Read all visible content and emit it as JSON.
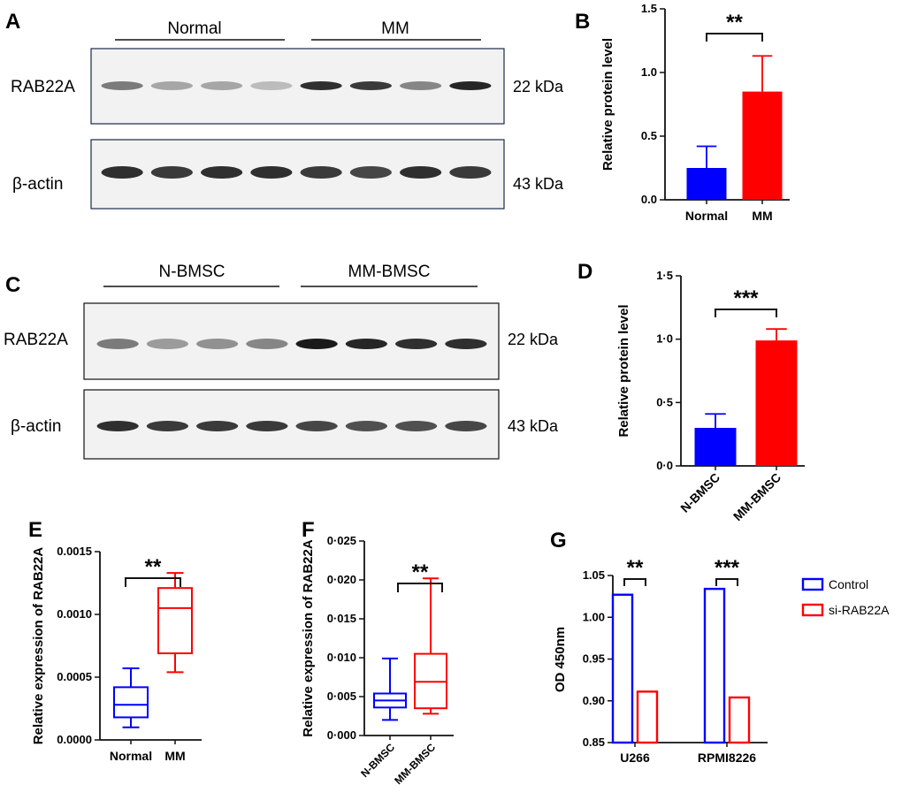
{
  "panels": {
    "A": {
      "label": "A",
      "groups": [
        "Normal",
        "MM"
      ],
      "rows": [
        "RAB22A",
        "β-actin"
      ],
      "sizes": [
        "22 kDa",
        "43 kDa"
      ],
      "band_intensity": {
        "RAB22A": [
          0.55,
          0.35,
          0.35,
          0.25,
          0.9,
          0.85,
          0.5,
          0.95
        ],
        "beta_actin": [
          0.9,
          0.85,
          0.9,
          0.9,
          0.85,
          0.8,
          0.9,
          0.85
        ]
      }
    },
    "C": {
      "label": "C",
      "groups": [
        "N-BMSC",
        "MM-BMSC"
      ],
      "rows": [
        "RAB22A",
        "β-actin"
      ],
      "sizes": [
        "22 kDa",
        "43 kDa"
      ],
      "band_intensity": {
        "RAB22A": [
          0.55,
          0.4,
          0.45,
          0.5,
          1.0,
          0.95,
          0.9,
          0.9
        ],
        "beta_actin": [
          0.9,
          0.85,
          0.85,
          0.85,
          0.8,
          0.75,
          0.75,
          0.8
        ]
      }
    },
    "B": {
      "label": "B"
    },
    "D": {
      "label": "D"
    },
    "E": {
      "label": "E"
    },
    "F": {
      "label": "F"
    },
    "G": {
      "label": "G"
    }
  },
  "chart_data": [
    {
      "id": "B",
      "type": "bar",
      "categories": [
        "Normal",
        "MM"
      ],
      "values": [
        0.25,
        0.85
      ],
      "errors": [
        0.17,
        0.28
      ],
      "colors": [
        "#0000ff",
        "#ff0000"
      ],
      "ylabel": "Relative protein level",
      "ylim": [
        0,
        1.5
      ],
      "yticks": [
        "0.0",
        "0.5",
        "1.0",
        "1.5"
      ],
      "significance": "**"
    },
    {
      "id": "D",
      "type": "bar",
      "categories": [
        "N-BMSC",
        "MM-BMSC"
      ],
      "values": [
        0.3,
        0.99
      ],
      "errors": [
        0.11,
        0.09
      ],
      "colors": [
        "#0000ff",
        "#ff0000"
      ],
      "ylabel": "Relative protein level",
      "ylim": [
        0,
        1.2
      ],
      "yticks": [
        "0·0",
        "0·5",
        "1·0",
        "1·5"
      ],
      "ytick_values": [
        0,
        0.5,
        1.0,
        1.5
      ],
      "significance": "***"
    },
    {
      "id": "E",
      "type": "box",
      "categories": [
        "Normal",
        "MM"
      ],
      "ylabel": "Relative expression of RAB22A",
      "ylim": [
        0,
        0.0015
      ],
      "yticks": [
        "0.0000",
        "0.0005",
        "0.0010",
        "0.0015"
      ],
      "colors": [
        "#0000ff",
        "#ff0000"
      ],
      "significance": "**",
      "boxes": [
        {
          "min": 0.0001,
          "q1": 0.00018,
          "median": 0.00028,
          "q3": 0.00042,
          "max": 0.00057
        },
        {
          "min": 0.00054,
          "q1": 0.00069,
          "median": 0.00105,
          "q3": 0.00121,
          "max": 0.00133
        }
      ]
    },
    {
      "id": "F",
      "type": "box",
      "categories": [
        "N-BMSC",
        "MM-BMSC"
      ],
      "ylabel": "Relative expression of RAB22A",
      "ylim": [
        0,
        0.025
      ],
      "yticks": [
        "0·000",
        "0·005",
        "0·010",
        "0·015",
        "0·020",
        "0·025"
      ],
      "colors": [
        "#0000ff",
        "#ff0000"
      ],
      "significance": "**",
      "boxes": [
        {
          "min": 0.002,
          "q1": 0.0036,
          "median": 0.0045,
          "q3": 0.0054,
          "max": 0.0099
        },
        {
          "min": 0.0028,
          "q1": 0.0035,
          "median": 0.0069,
          "q3": 0.0105,
          "max": 0.0202
        }
      ]
    },
    {
      "id": "G",
      "type": "bar",
      "categories": [
        "U266",
        "RPMI8226"
      ],
      "series": [
        {
          "name": "Control",
          "values": [
            1.027,
            1.034
          ],
          "color": "#0000ff"
        },
        {
          "name": "si-RAB22A",
          "values": [
            0.911,
            0.904
          ],
          "color": "#ff0000"
        }
      ],
      "ylabel": "OD 450nm",
      "ylim": [
        0.85,
        1.05
      ],
      "yticks": [
        "0.85",
        "0.90",
        "0.95",
        "1.00",
        "1.05"
      ],
      "significance": [
        "**",
        "***"
      ],
      "legend": "right"
    }
  ]
}
